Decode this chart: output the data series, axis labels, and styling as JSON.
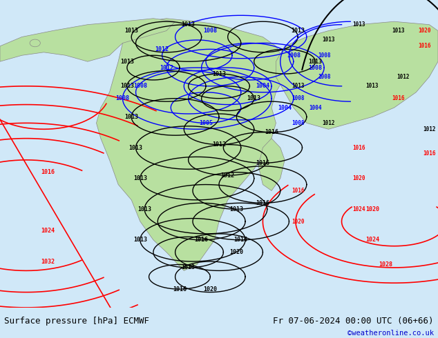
{
  "title_left": "Surface pressure [hPa] ECMWF",
  "title_right": "Fr 07-06-2024 00:00 UTC (06+66)",
  "watermark": "©weatheronline.co.uk",
  "bg_color": "#d0e8f8",
  "land_color": "#b8e0a0",
  "font_family": "monospace",
  "bottom_bar_color": "#ffffff",
  "bottom_bar_height": 0.09,
  "watermark_color": "#0000cc"
}
